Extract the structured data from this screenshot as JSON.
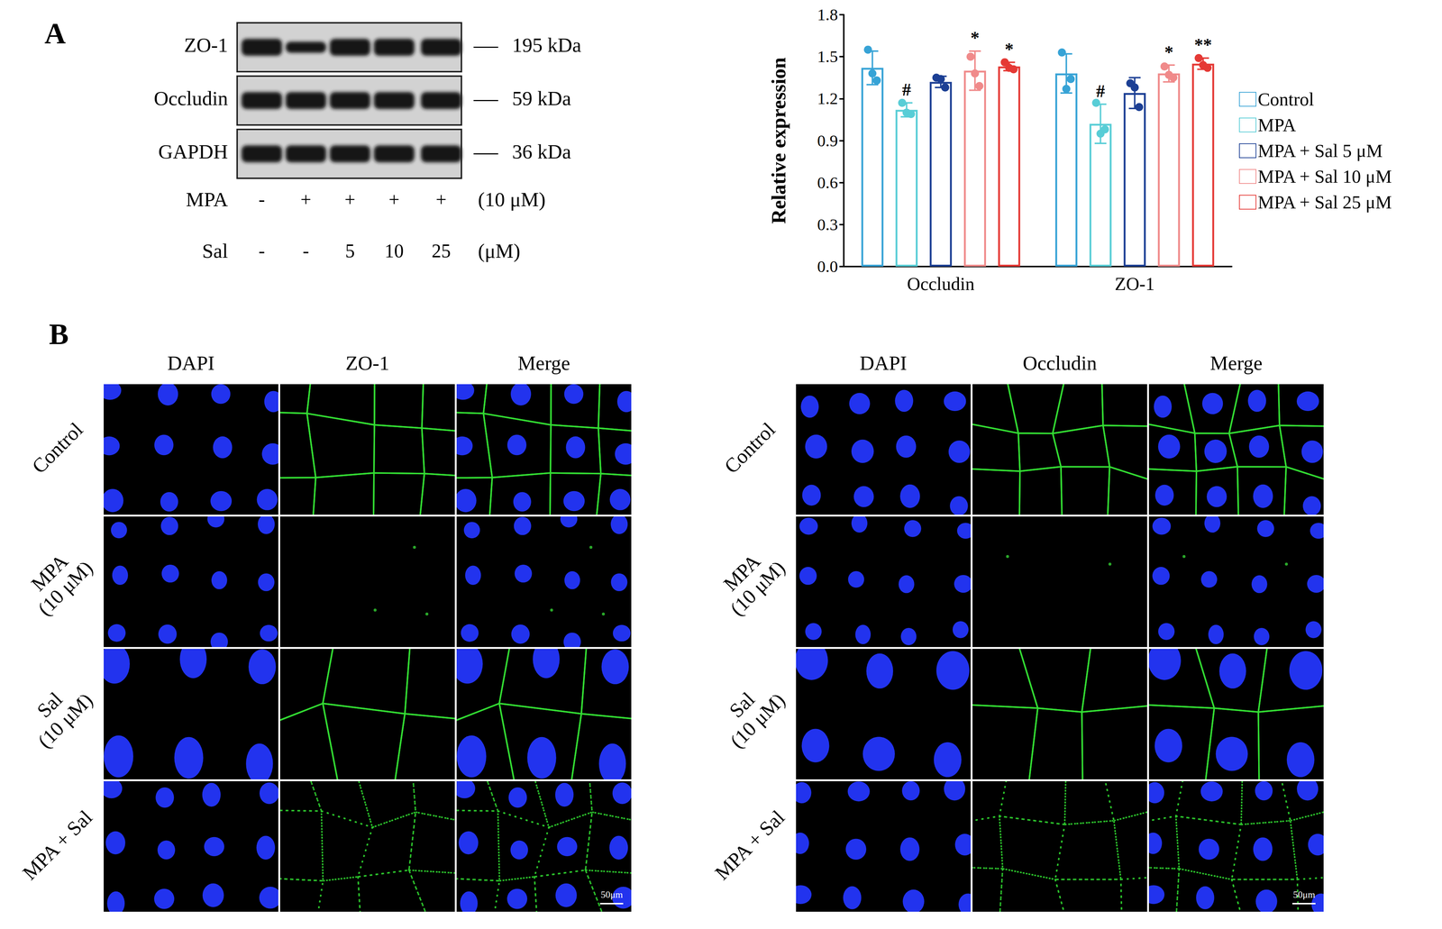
{
  "panel_labels": [
    "A",
    "B"
  ],
  "blot": {
    "rows": [
      {
        "label": "ZO-1",
        "size": "195 kDa"
      },
      {
        "label": "Occludin",
        "size": "59 kDa"
      },
      {
        "label": "GAPDH",
        "size": "36 kDa"
      }
    ],
    "treatments": [
      {
        "label": "MPA",
        "lanes": [
          "-",
          "+",
          "+",
          "+",
          "+"
        ],
        "unit": "(10 μM)"
      },
      {
        "label": "Sal",
        "lanes": [
          "-",
          "-",
          "5",
          "10",
          "25"
        ],
        "unit": "(μM)"
      }
    ]
  },
  "chart_data": {
    "type": "bar",
    "y_label": "Relative expression",
    "categories": [
      "Occludin",
      "ZO-1"
    ],
    "ylim": [
      0,
      1.8
    ],
    "yticks": [
      {
        "value": 0,
        "label": "0.0"
      },
      0.3,
      0.6,
      0.9,
      1.2,
      1.5,
      1.8
    ],
    "grid": false,
    "legend": "right",
    "series": [
      {
        "name": "Control",
        "color": "#37a3d6",
        "values": [
          1.42,
          1.38
        ],
        "errors": [
          0.12,
          0.14
        ],
        "points": [
          [
            1.55,
            1.38,
            1.33
          ],
          [
            1.53,
            1.27,
            1.34
          ]
        ],
        "significance": [
          null,
          null
        ]
      },
      {
        "name": "MPA",
        "color": "#58cdd6",
        "values": [
          1.12,
          1.02
        ],
        "errors": [
          0.05,
          0.14
        ],
        "points": [
          [
            1.17,
            1.1,
            1.09
          ],
          [
            1.17,
            0.95,
            0.98
          ]
        ],
        "significance": [
          "#",
          "#"
        ]
      },
      {
        "name": "MPA + Sal 5 μM",
        "color": "#1c3f94",
        "values": [
          1.32,
          1.24
        ],
        "errors": [
          0.04,
          0.11
        ],
        "points": [
          [
            1.35,
            1.34,
            1.28
          ],
          [
            1.31,
            1.28,
            1.14
          ]
        ],
        "significance": [
          null,
          null
        ]
      },
      {
        "name": "MPA + Sal 10 μM",
        "color": "#f08a8a",
        "values": [
          1.4,
          1.38
        ],
        "errors": [
          0.14,
          0.06
        ],
        "points": [
          [
            1.5,
            1.38,
            1.29
          ],
          [
            1.43,
            1.37,
            1.35
          ]
        ],
        "significance": [
          "*",
          "*"
        ]
      },
      {
        "name": "MPA + Sal 25 μM",
        "color": "#e53935",
        "values": [
          1.43,
          1.45
        ],
        "errors": [
          0.03,
          0.04
        ],
        "points": [
          [
            1.46,
            1.42,
            1.41
          ],
          [
            1.49,
            1.44,
            1.42
          ]
        ],
        "significance": [
          "*",
          "**"
        ]
      }
    ]
  },
  "micrographs": [
    {
      "columns": [
        "DAPI",
        "ZO-1",
        "Merge"
      ],
      "rows": [
        "Control",
        "MPA (10 μM)",
        "Sal (10 μM)",
        "MPA + Sal"
      ],
      "scale_bar": "50μm"
    },
    {
      "columns": [
        "DAPI",
        "Occludin",
        "Merge"
      ],
      "rows": [
        "Control",
        "MPA (10 μM)",
        "Sal (10 μM)",
        "MPA + Sal"
      ],
      "scale_bar": "50μm"
    }
  ]
}
